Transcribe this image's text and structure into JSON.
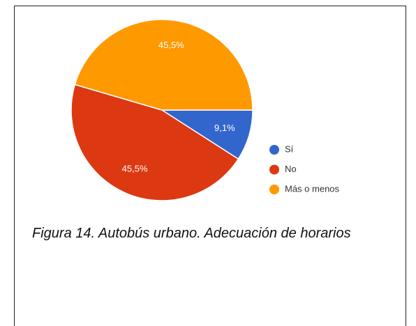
{
  "chart_data": {
    "type": "pie",
    "categories": [
      "Sí",
      "No",
      "Más o menos"
    ],
    "values": [
      9.1,
      45.5,
      45.5
    ],
    "value_labels": [
      "9,1%",
      "45,5%",
      "45,5%"
    ],
    "colors": [
      "#3366cc",
      "#dc3912",
      "#ff9900"
    ],
    "legend": "right",
    "caption": "Figura 14. Autobús urbano. Adecuación de horarios"
  }
}
